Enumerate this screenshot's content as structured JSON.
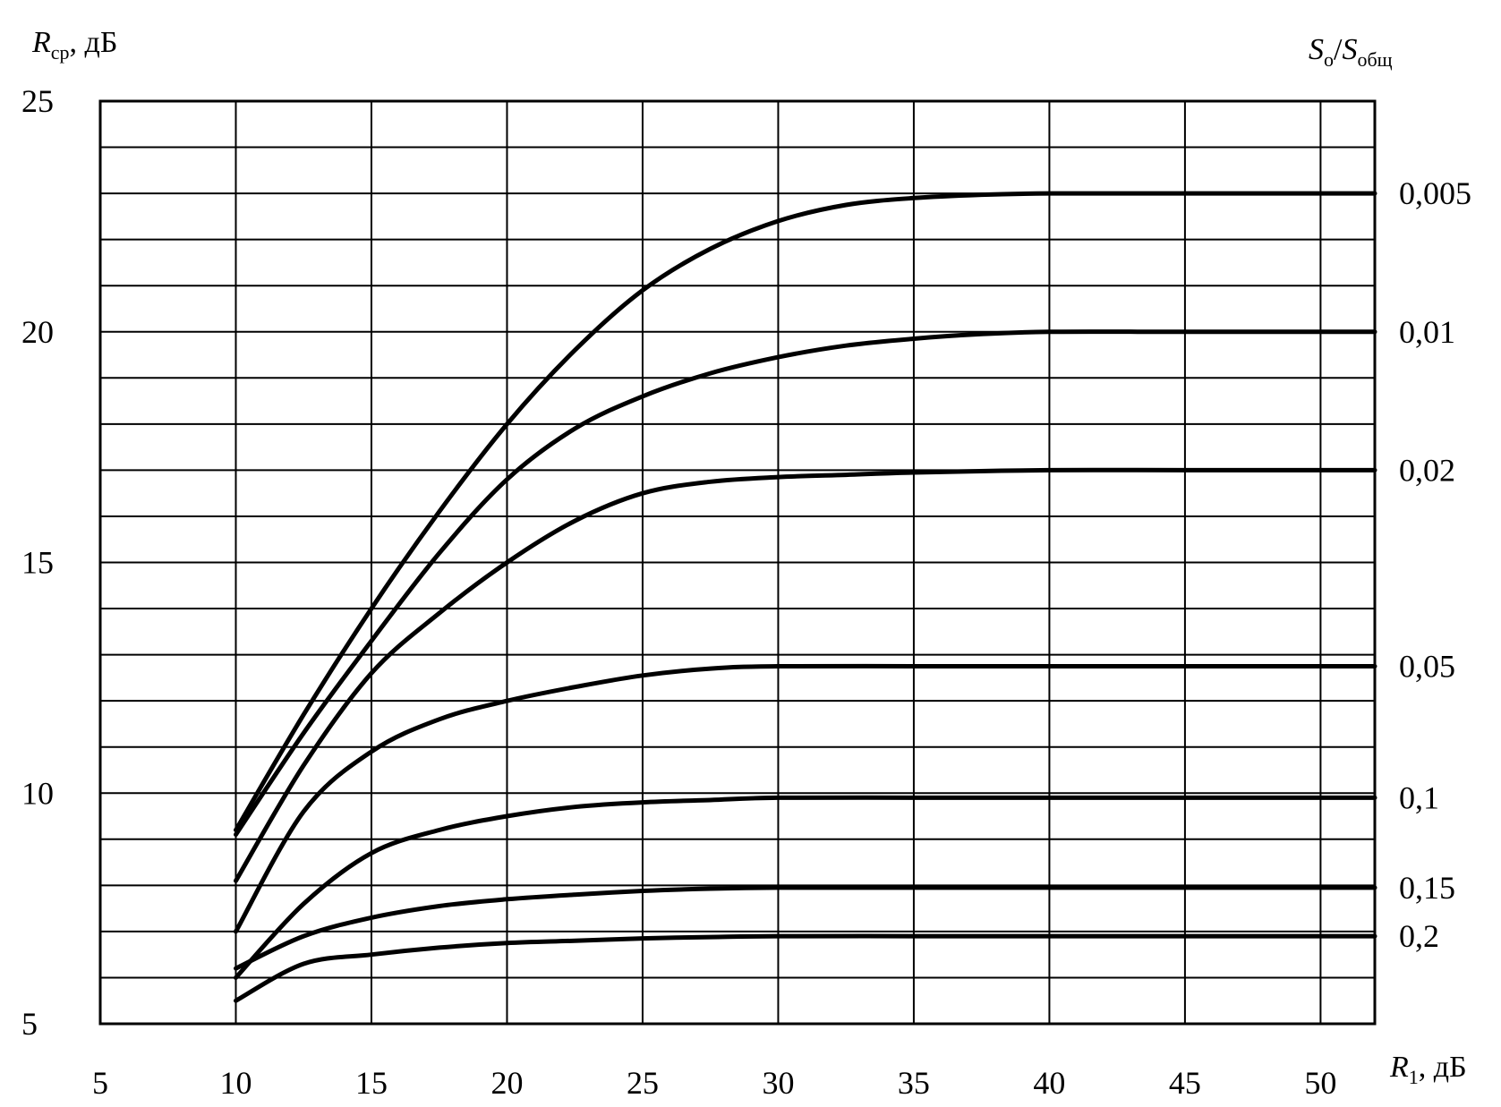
{
  "chart_data": {
    "type": "line",
    "ylabel_main": "R",
    "ylabel_sub": "ср",
    "ylabel_unit": ", дБ",
    "xlabel_main": "R",
    "xlabel_sub": "1",
    "xlabel_unit": ", дБ",
    "right_label_main_a": "S",
    "right_label_sub_a": "о",
    "right_label_slash": "/",
    "right_label_main_b": "S",
    "right_label_sub_b": "общ",
    "xlim": [
      5,
      52
    ],
    "ylim": [
      5,
      25
    ],
    "grid": true,
    "x_ticks": [
      "5",
      "10",
      "15",
      "20",
      "25",
      "30",
      "35",
      "40",
      "45",
      "50"
    ],
    "y_ticks": [
      "5",
      "10",
      "15",
      "20",
      "25"
    ],
    "series": [
      {
        "name": "0,005",
        "x": [
          10,
          12.5,
          15,
          17.5,
          20,
          22.5,
          25,
          27.5,
          30,
          32.5,
          35,
          37.5,
          40,
          45,
          52
        ],
        "y": [
          9.2,
          11.7,
          14.0,
          16.1,
          18.0,
          19.6,
          20.9,
          21.8,
          22.4,
          22.75,
          22.9,
          22.97,
          23.0,
          23.0,
          23.0
        ]
      },
      {
        "name": "0,01",
        "x": [
          10,
          12.5,
          15,
          17.5,
          20,
          22.5,
          25,
          27.5,
          30,
          32.5,
          35,
          37.5,
          40,
          45,
          52
        ],
        "y": [
          9.1,
          11.3,
          13.3,
          15.2,
          16.8,
          17.9,
          18.6,
          19.1,
          19.45,
          19.7,
          19.85,
          19.95,
          20.0,
          20.0,
          20.0
        ]
      },
      {
        "name": "0,02",
        "x": [
          10,
          12.5,
          15,
          17.5,
          20,
          22.5,
          25,
          27.5,
          30,
          32.5,
          35,
          40,
          45,
          52
        ],
        "y": [
          8.1,
          10.6,
          12.6,
          13.9,
          15.0,
          15.9,
          16.5,
          16.75,
          16.85,
          16.9,
          16.95,
          17.0,
          17.0,
          17.0
        ]
      },
      {
        "name": "0,05",
        "x": [
          10,
          12.5,
          15,
          17.5,
          20,
          22.5,
          25,
          27.5,
          30,
          35,
          40,
          45,
          52
        ],
        "y": [
          7.0,
          9.6,
          10.9,
          11.6,
          12.0,
          12.3,
          12.55,
          12.7,
          12.75,
          12.75,
          12.75,
          12.75,
          12.75
        ]
      },
      {
        "name": "0,1",
        "x": [
          10,
          12.5,
          15,
          17.5,
          20,
          22.5,
          25,
          27.5,
          30,
          35,
          40,
          45,
          52
        ],
        "y": [
          6.0,
          7.6,
          8.7,
          9.2,
          9.5,
          9.7,
          9.8,
          9.85,
          9.9,
          9.9,
          9.9,
          9.9,
          9.9
        ]
      },
      {
        "name": "0,15",
        "x": [
          10,
          12.5,
          15,
          17.5,
          20,
          22.5,
          25,
          27.5,
          30,
          35,
          40,
          45,
          52
        ],
        "y": [
          6.2,
          6.9,
          7.3,
          7.55,
          7.7,
          7.8,
          7.88,
          7.93,
          7.95,
          7.95,
          7.95,
          7.95,
          7.95
        ]
      },
      {
        "name": "0,2",
        "x": [
          10,
          12.5,
          15,
          17.5,
          20,
          22.5,
          25,
          27.5,
          30,
          35,
          40,
          45,
          52
        ],
        "y": [
          5.5,
          6.3,
          6.5,
          6.65,
          6.75,
          6.8,
          6.85,
          6.88,
          6.9,
          6.9,
          6.9,
          6.9,
          6.9
        ]
      }
    ]
  }
}
